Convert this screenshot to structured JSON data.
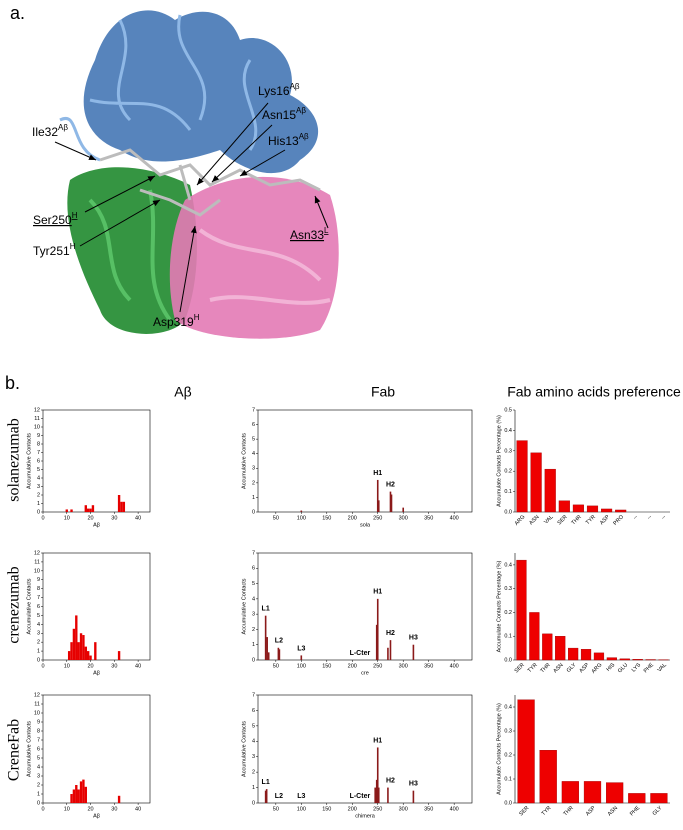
{
  "panel_a": {
    "label": "a.",
    "residues": [
      {
        "name": "Lys16",
        "sup": "Aβ"
      },
      {
        "name": "Asn15",
        "sup": "Aβ"
      },
      {
        "name": "His13",
        "sup": "Aβ"
      },
      {
        "name": "Ile32",
        "sup": "Aβ"
      },
      {
        "name": "Ser250",
        "sup": "H"
      },
      {
        "name": "Tyr251",
        "sup": "H"
      },
      {
        "name": "Asp319",
        "sup": "H"
      },
      {
        "name": "Asn33",
        "sup": "L"
      }
    ]
  },
  "panel_b": {
    "label": "b.",
    "columns": [
      "Aβ",
      "Fab",
      "Fab amino acids preference"
    ],
    "rows": [
      "solanezumab",
      "crenezumab",
      "CreneFab"
    ]
  },
  "chart_data": [
    {
      "type": "bar",
      "color": "#e60000",
      "xlabel": "Aβ",
      "ylabel": "Accumulative Contacts",
      "x": [
        10,
        12,
        18,
        19,
        20,
        21,
        32,
        33,
        34
      ],
      "values": [
        0.3,
        0.3,
        0.8,
        0.4,
        0.4,
        0.8,
        2,
        1.2,
        1.2
      ],
      "xlim": [
        0,
        45
      ],
      "xticks": [
        0,
        10,
        20,
        30,
        40
      ],
      "ylim": [
        0,
        12
      ],
      "yticks": [
        0,
        1,
        2,
        3,
        4,
        5,
        6,
        7,
        8,
        9,
        10,
        11,
        12
      ]
    },
    {
      "type": "bar",
      "color": "#8b1a1a",
      "xlabel": "sola",
      "ylabel": "Accumulative Contacts",
      "x": [
        100,
        250,
        252,
        275,
        277,
        300
      ],
      "values": [
        0.1,
        2.2,
        0.8,
        1.4,
        1.2,
        0.3
      ],
      "xlim": [
        15,
        435
      ],
      "xticks": [
        50,
        100,
        150,
        200,
        250,
        300,
        350,
        400
      ],
      "ylim": [
        0,
        7
      ],
      "yticks": [
        0,
        1,
        2,
        3,
        4,
        5,
        6,
        7
      ],
      "annotations": [
        {
          "label": "H1",
          "x": 250
        },
        {
          "label": "H2",
          "x": 275
        }
      ]
    },
    {
      "type": "bar",
      "color": "#ee0000",
      "ylabel": "Accumulate Contacts Percentage (%)",
      "categories": [
        "ARG",
        "ASN",
        "VAL",
        "SER",
        "THR",
        "TYR",
        "ASP",
        "PRO",
        "--",
        "--",
        "--"
      ],
      "values": [
        0.35,
        0.29,
        0.21,
        0.055,
        0.035,
        0.03,
        0.015,
        0.01,
        0,
        0,
        0
      ],
      "ylim": [
        0,
        0.5
      ],
      "yticks": [
        {
          "value": 0,
          "label": "0.0"
        },
        0.1,
        0.2,
        0.3,
        0.4,
        0.5
      ]
    },
    {
      "type": "bar",
      "color": "#e60000",
      "xlabel": "Aβ",
      "ylabel": "Accumulative Contacts",
      "x": [
        11,
        12,
        13,
        14,
        15,
        16,
        17,
        18,
        19,
        20,
        22,
        32
      ],
      "values": [
        1,
        2,
        3.5,
        5,
        2,
        3,
        2.8,
        1.5,
        1,
        0.5,
        2,
        1
      ],
      "xlim": [
        0,
        45
      ],
      "xticks": [
        0,
        10,
        20,
        30,
        40
      ],
      "ylim": [
        0,
        12
      ],
      "yticks": [
        0,
        1,
        2,
        3,
        4,
        5,
        6,
        7,
        8,
        9,
        10,
        11,
        12
      ]
    },
    {
      "type": "bar",
      "color": "#8b1a1a",
      "xlabel": "cre",
      "ylabel": "Accumulative Contacts",
      "x": [
        30,
        33,
        36,
        55,
        57,
        100,
        248,
        250,
        270,
        275,
        320
      ],
      "values": [
        2.9,
        1.5,
        0.5,
        0.8,
        0.7,
        0.3,
        2.3,
        4,
        0.8,
        1.3,
        1
      ],
      "xlim": [
        15,
        435
      ],
      "xticks": [
        50,
        100,
        150,
        200,
        250,
        300,
        350,
        400
      ],
      "ylim": [
        0,
        7
      ],
      "yticks": [
        0,
        1,
        2,
        3,
        4,
        5,
        6,
        7
      ],
      "annotations": [
        {
          "label": "L1",
          "x": 30
        },
        {
          "label": "L2",
          "x": 56
        },
        {
          "label": "L3",
          "x": 100
        },
        {
          "label": "L-Cter",
          "x": 215
        },
        {
          "label": "H1",
          "x": 250
        },
        {
          "label": "H2",
          "x": 275
        },
        {
          "label": "H3",
          "x": 320
        }
      ]
    },
    {
      "type": "bar",
      "color": "#ee0000",
      "ylabel": "Accumulate Contacts Percentage (%)",
      "categories": [
        "SER",
        "TYR",
        "THR",
        "ASN",
        "GLY",
        "ASP",
        "ARG",
        "HIS",
        "GLU",
        "LYS",
        "PHE",
        "VAL"
      ],
      "values": [
        0.42,
        0.2,
        0.11,
        0.1,
        0.05,
        0.045,
        0.03,
        0.01,
        0.005,
        0.003,
        0.002,
        0.001
      ],
      "ylim": [
        0,
        0.45
      ],
      "yticks": [
        {
          "value": 0,
          "label": "0.0"
        },
        0.1,
        0.2,
        0.3,
        0.4
      ]
    },
    {
      "type": "bar",
      "color": "#e60000",
      "xlabel": "Aβ",
      "ylabel": "Accumulative Contacts",
      "x": [
        12,
        13,
        14,
        15,
        16,
        17,
        18,
        32
      ],
      "values": [
        1,
        1.5,
        2,
        1.5,
        2.4,
        2.6,
        1.8,
        0.8
      ],
      "xlim": [
        0,
        45
      ],
      "xticks": [
        0,
        10,
        20,
        30,
        40
      ],
      "ylim": [
        0,
        12
      ],
      "yticks": [
        0,
        1,
        2,
        3,
        4,
        5,
        6,
        7,
        8,
        9,
        10,
        11,
        12
      ]
    },
    {
      "type": "bar",
      "color": "#8b1a1a",
      "xlabel": "chimera",
      "ylabel": "Accumulative Contacts",
      "x": [
        30,
        32,
        245,
        248,
        250,
        252,
        270,
        320
      ],
      "values": [
        0.8,
        0.9,
        1,
        1.5,
        3.6,
        1,
        1,
        0.8
      ],
      "xlim": [
        15,
        435
      ],
      "xticks": [
        50,
        100,
        150,
        200,
        250,
        300,
        350,
        400
      ],
      "ylim": [
        0,
        7
      ],
      "yticks": [
        0,
        1,
        2,
        3,
        4,
        5,
        6,
        7
      ],
      "annotations": [
        {
          "label": "L1",
          "x": 30
        },
        {
          "label": "L2",
          "x": 56
        },
        {
          "label": "L3",
          "x": 100
        },
        {
          "label": "L-Cter",
          "x": 215
        },
        {
          "label": "H1",
          "x": 250
        },
        {
          "label": "H2",
          "x": 275
        },
        {
          "label": "H3",
          "x": 320
        }
      ]
    },
    {
      "type": "bar",
      "color": "#ee0000",
      "ylabel": "Accumulate Contacts Percentage (%)",
      "categories": [
        "SER",
        "TYR",
        "THR",
        "ASP",
        "ASN",
        "PHE",
        "GLY"
      ],
      "values": [
        0.43,
        0.22,
        0.09,
        0.09,
        0.085,
        0.04,
        0.04
      ],
      "ylim": [
        0,
        0.45
      ],
      "yticks": [
        {
          "value": 0,
          "label": "0.0"
        },
        0.1,
        0.2,
        0.3,
        0.4
      ]
    }
  ]
}
